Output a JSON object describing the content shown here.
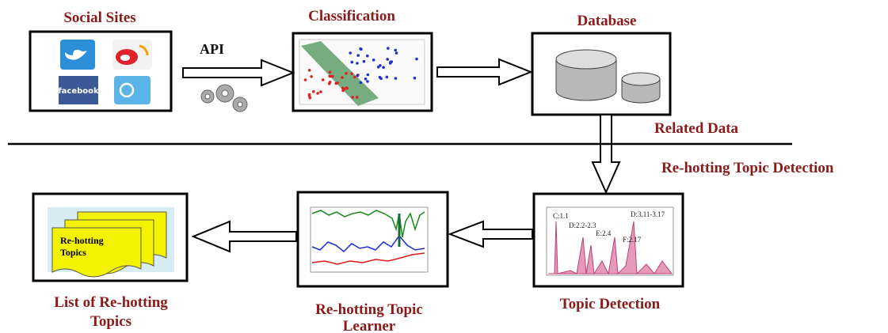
{
  "top_section": {
    "nodes": [
      {
        "label": "Social Sites"
      },
      {
        "label": "Classification"
      },
      {
        "label": "Database"
      }
    ],
    "api_label": "API"
  },
  "related_data": "Related Data",
  "section_title": "Re-hotting Topic Detection",
  "bottom_section": {
    "nodes": [
      {
        "label_lines": [
          "List of Re-hotting",
          "Topics"
        ]
      },
      {
        "label_lines": [
          "Re-hotting Topic",
          "Learner"
        ]
      },
      {
        "label_lines": [
          "Topic Detection"
        ]
      }
    ]
  },
  "icons": {
    "facebook": "facebook",
    "document_lines": [
      "Re-hotting",
      "Topics"
    ]
  },
  "peaks": [
    "C:1.1",
    "D:2.2-2.3",
    "E:2.4",
    "F:2.17",
    "D:3.11-3.17"
  ]
}
